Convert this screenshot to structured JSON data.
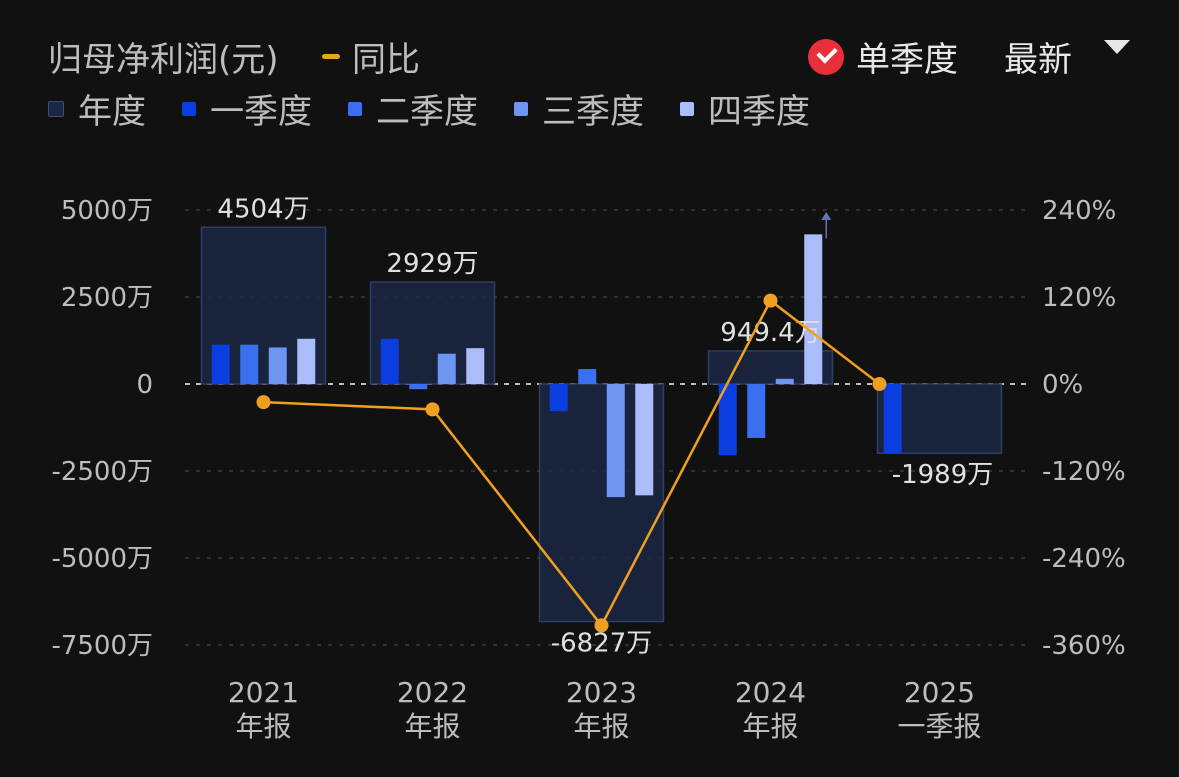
{
  "header": {
    "title": "归母净利润(元)",
    "yoy_label": "同比",
    "single_quarter_label": "单季度",
    "latest_label": "最新"
  },
  "colors": {
    "annual": "#1b2744",
    "q1": "#0a3ee0",
    "q2": "#3a6ff0",
    "q3": "#6f95f3",
    "q4": "#aabdfa",
    "yoy": "#f0a020"
  },
  "chart_data": {
    "type": "bar",
    "categories": [
      {
        "year": "2021",
        "period": "年报"
      },
      {
        "year": "2022",
        "period": "年报"
      },
      {
        "year": "2023",
        "period": "年报"
      },
      {
        "year": "2024",
        "period": "年报"
      },
      {
        "year": "2025",
        "period": "一季报"
      }
    ],
    "series": [
      {
        "name": "年度",
        "values": [
          4504,
          2929,
          -6827,
          949.4,
          -1989
        ]
      },
      {
        "name": "一季度",
        "values": [
          1130,
          1300,
          -780,
          -2050,
          -1989
        ]
      },
      {
        "name": "二季度",
        "values": [
          1130,
          -150,
          430,
          -1550,
          null
        ]
      },
      {
        "name": "三季度",
        "values": [
          1050,
          870,
          -3250,
          150,
          null
        ]
      },
      {
        "name": "四季度",
        "values": [
          1300,
          1030,
          -3200,
          4300,
          null
        ]
      }
    ],
    "data_labels": [
      "4504万",
      "2929万",
      "-6827万",
      "949.4万",
      "-1989万"
    ],
    "yoy_pct": [
      -25,
      -35,
      -333,
      115,
      0
    ],
    "y_left_ticks": [
      {
        "value": 5000,
        "label": "5000万"
      },
      {
        "value": 2500,
        "label": "2500万"
      },
      {
        "value": 0,
        "label": "0"
      },
      {
        "value": -2500,
        "label": "-2500万"
      },
      {
        "value": -5000,
        "label": "-5000万"
      },
      {
        "value": -7500,
        "label": "-7500万"
      }
    ],
    "y_right_ticks": [
      {
        "value": 240,
        "label": "240%"
      },
      {
        "value": 120,
        "label": "120%"
      },
      {
        "value": 0,
        "label": "0%"
      },
      {
        "value": -120,
        "label": "-120%"
      },
      {
        "value": -240,
        "label": "-240%"
      },
      {
        "value": -360,
        "label": "-360%"
      }
    ],
    "ylim_left": [
      -7500,
      5000
    ],
    "ylim_right": [
      -360,
      240
    ],
    "unit": "万"
  }
}
